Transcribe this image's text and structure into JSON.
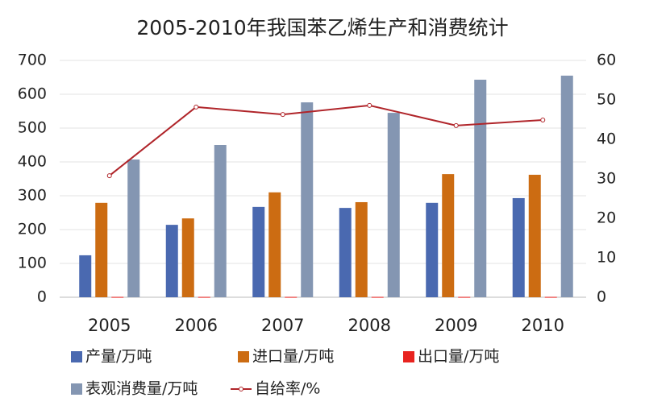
{
  "chart_data": {
    "type": "bar",
    "title": "2005-2010年我国苯乙烯生产和消费统计",
    "categories": [
      "2005",
      "2006",
      "2007",
      "2008",
      "2009",
      "2010"
    ],
    "series": [
      {
        "name": "产量/万吨",
        "color": "#4a69b0",
        "values": [
          124,
          214,
          267,
          264,
          279,
          293
        ]
      },
      {
        "name": "进口量/万吨",
        "color": "#cc6c12",
        "values": [
          279,
          233,
          310,
          281,
          364,
          362
        ]
      },
      {
        "name": "出口量/万吨",
        "color": "#e8231f",
        "values": [
          1,
          1,
          1,
          1,
          1,
          1
        ]
      },
      {
        "name": "表观消费量/万吨",
        "color": "#8496b2",
        "values": [
          407,
          450,
          576,
          545,
          643,
          655
        ]
      },
      {
        "name": "自给率/%",
        "color": "#b0252a",
        "type": "line",
        "axis": "y2",
        "values": [
          30.8,
          48.2,
          46.3,
          48.6,
          43.5,
          44.9
        ]
      }
    ],
    "ylim": [
      0,
      700
    ],
    "yticks": [
      0,
      100,
      200,
      300,
      400,
      500,
      600,
      700
    ],
    "y2lim": [
      0,
      60
    ],
    "y2ticks": [
      0,
      10,
      20,
      30,
      40,
      50,
      60
    ],
    "grid": true
  }
}
